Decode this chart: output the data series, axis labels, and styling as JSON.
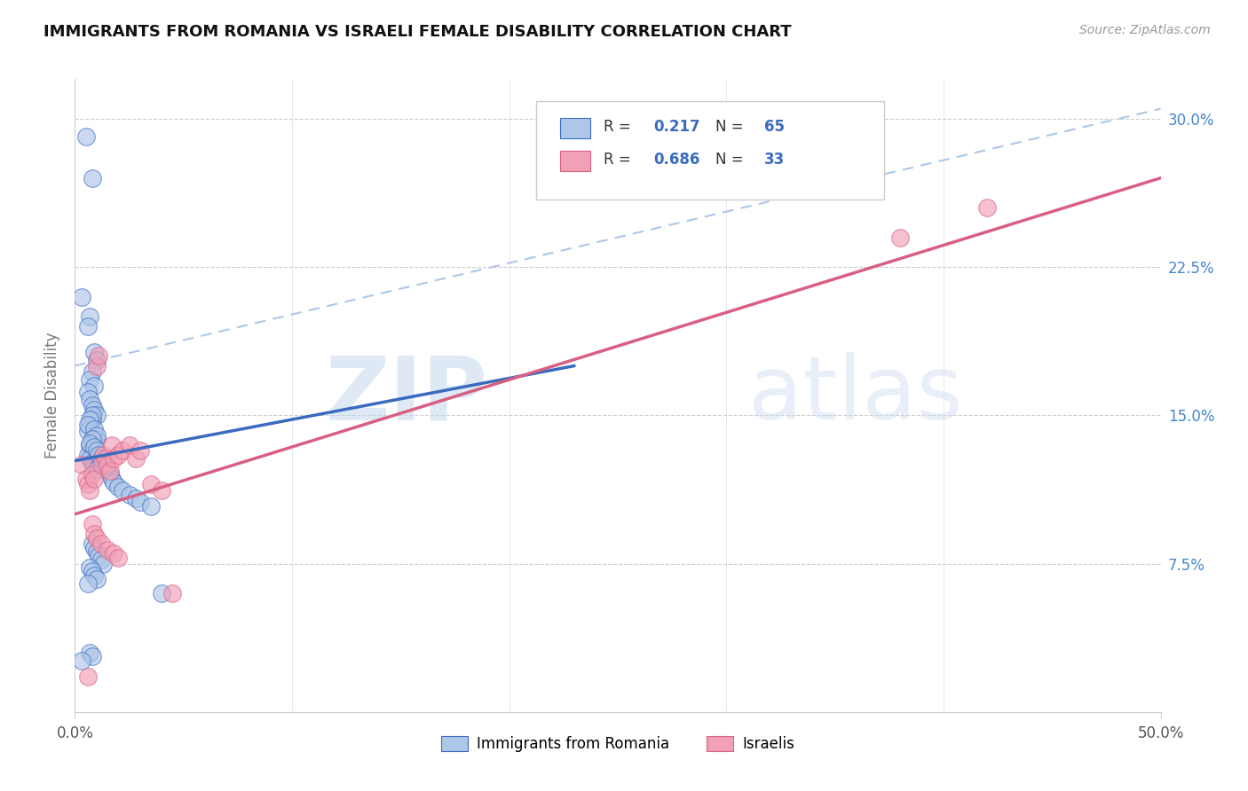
{
  "title": "IMMIGRANTS FROM ROMANIA VS ISRAELI FEMALE DISABILITY CORRELATION CHART",
  "source": "Source: ZipAtlas.com",
  "ylabel": "Female Disability",
  "legend_label_bottom": [
    "Immigrants from Romania",
    "Israelis"
  ],
  "R_blue": "0.217",
  "N_blue": "65",
  "R_pink": "0.686",
  "N_pink": "33",
  "blue_color": "#aec6e8",
  "blue_line_color": "#3a6bbf",
  "pink_color": "#f2a0b5",
  "pink_line_color": "#d95f82",
  "dashed_line_color": "#aec6e8",
  "xlim": [
    0.0,
    0.5
  ],
  "ylim": [
    0.0,
    0.32
  ],
  "watermark_zip": "ZIP",
  "watermark_atlas": "atlas",
  "blue_scatter_x": [
    0.005,
    0.008,
    0.003,
    0.007,
    0.006,
    0.009,
    0.01,
    0.008,
    0.007,
    0.009,
    0.006,
    0.007,
    0.008,
    0.009,
    0.01,
    0.008,
    0.007,
    0.006,
    0.009,
    0.01,
    0.007,
    0.008,
    0.006,
    0.007,
    0.008,
    0.009,
    0.01,
    0.008,
    0.007,
    0.006,
    0.009,
    0.01,
    0.008,
    0.007,
    0.009,
    0.01,
    0.011,
    0.012,
    0.013,
    0.014,
    0.015,
    0.016,
    0.017,
    0.018,
    0.02,
    0.022,
    0.025,
    0.028,
    0.03,
    0.035,
    0.008,
    0.009,
    0.01,
    0.011,
    0.012,
    0.013,
    0.007,
    0.008,
    0.009,
    0.01,
    0.006,
    0.007,
    0.008,
    0.04,
    0.003
  ],
  "blue_scatter_y": [
    0.291,
    0.27,
    0.21,
    0.2,
    0.195,
    0.182,
    0.178,
    0.172,
    0.168,
    0.165,
    0.162,
    0.158,
    0.155,
    0.153,
    0.15,
    0.148,
    0.145,
    0.142,
    0.14,
    0.138,
    0.135,
    0.133,
    0.13,
    0.128,
    0.126,
    0.125,
    0.123,
    0.15,
    0.148,
    0.145,
    0.143,
    0.14,
    0.138,
    0.136,
    0.134,
    0.132,
    0.13,
    0.128,
    0.126,
    0.124,
    0.122,
    0.12,
    0.118,
    0.116,
    0.114,
    0.112,
    0.11,
    0.108,
    0.106,
    0.104,
    0.085,
    0.083,
    0.081,
    0.079,
    0.077,
    0.075,
    0.073,
    0.071,
    0.069,
    0.067,
    0.065,
    0.03,
    0.028,
    0.06,
    0.026
  ],
  "pink_scatter_x": [
    0.003,
    0.005,
    0.006,
    0.007,
    0.008,
    0.009,
    0.01,
    0.011,
    0.012,
    0.013,
    0.014,
    0.015,
    0.016,
    0.017,
    0.018,
    0.02,
    0.022,
    0.025,
    0.028,
    0.03,
    0.035,
    0.04,
    0.045,
    0.008,
    0.009,
    0.01,
    0.012,
    0.015,
    0.018,
    0.02,
    0.38,
    0.42,
    0.006
  ],
  "pink_scatter_y": [
    0.125,
    0.118,
    0.115,
    0.112,
    0.12,
    0.118,
    0.175,
    0.18,
    0.125,
    0.13,
    0.128,
    0.125,
    0.122,
    0.135,
    0.128,
    0.13,
    0.132,
    0.135,
    0.128,
    0.132,
    0.115,
    0.112,
    0.06,
    0.095,
    0.09,
    0.088,
    0.085,
    0.082,
    0.08,
    0.078,
    0.24,
    0.255,
    0.018
  ],
  "blue_trend_x": [
    0.0,
    0.23
  ],
  "blue_trend_y": [
    0.127,
    0.175
  ],
  "pink_trend_x": [
    0.0,
    0.5
  ],
  "pink_trend_y": [
    0.1,
    0.27
  ],
  "dashed_trend_x": [
    0.0,
    0.5
  ],
  "dashed_trend_y": [
    0.175,
    0.305
  ]
}
